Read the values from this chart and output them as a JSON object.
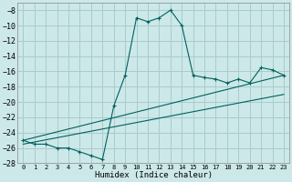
{
  "title": "",
  "xlabel": "Humidex (Indice chaleur)",
  "bg_color": "#cce8e8",
  "grid_color": "#aacccc",
  "line_color": "#006060",
  "ylim": [
    -28,
    -7
  ],
  "xlim": [
    -0.5,
    23.5
  ],
  "yticks": [
    -28,
    -26,
    -24,
    -22,
    -20,
    -18,
    -16,
    -14,
    -12,
    -10,
    -8
  ],
  "xticks": [
    0,
    1,
    2,
    3,
    4,
    5,
    6,
    7,
    8,
    9,
    10,
    11,
    12,
    13,
    14,
    15,
    16,
    17,
    18,
    19,
    20,
    21,
    22,
    23
  ],
  "line1_x": [
    0,
    1,
    2,
    3,
    4,
    5,
    6,
    7,
    8,
    9,
    10,
    11,
    12,
    13,
    14,
    15,
    16,
    17,
    18,
    19,
    20,
    21,
    22,
    23
  ],
  "line1_y": [
    -25.0,
    -25.5,
    -25.5,
    -26.0,
    -26.0,
    -26.5,
    -27.0,
    -27.5,
    -20.5,
    -16.5,
    -9.0,
    -9.5,
    -9.0,
    -8.0,
    -10.0,
    -16.5,
    -16.8,
    -17.0,
    -17.5,
    -17.0,
    -17.5,
    -15.5,
    -15.8,
    -16.5
  ],
  "line2_x": [
    0,
    23
  ],
  "line2_y": [
    -25.0,
    -16.5
  ],
  "line3_x": [
    0,
    23
  ],
  "line3_y": [
    -25.5,
    -19.0
  ]
}
